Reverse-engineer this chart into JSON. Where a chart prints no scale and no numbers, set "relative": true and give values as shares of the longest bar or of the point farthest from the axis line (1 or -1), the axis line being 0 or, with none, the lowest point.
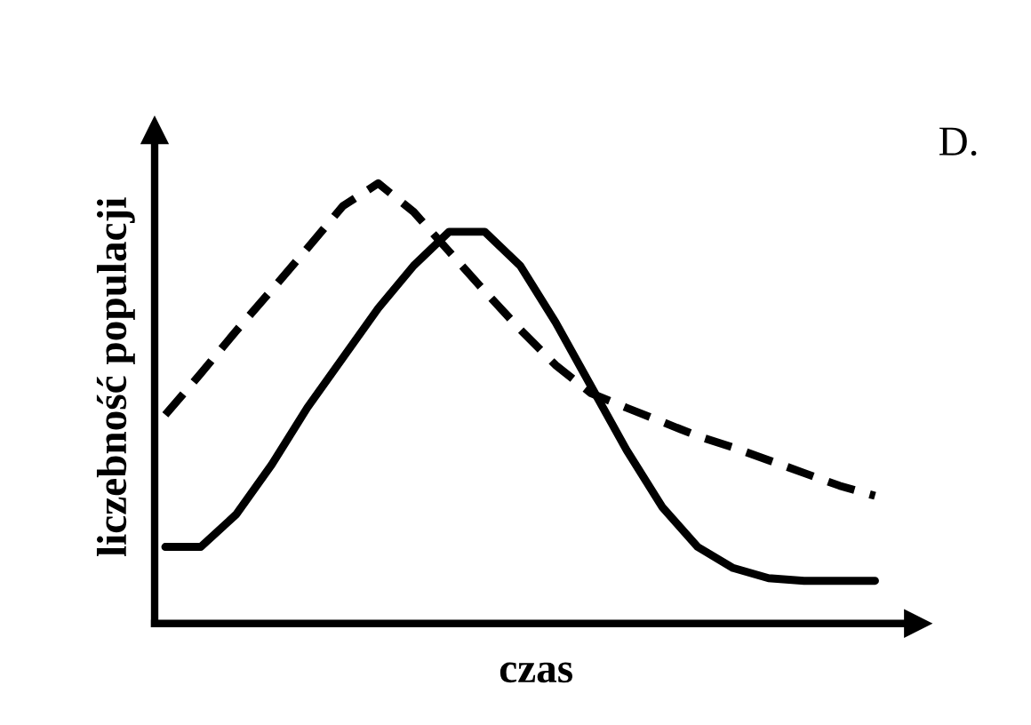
{
  "chart_data": {
    "type": "line",
    "relative": true,
    "xlabel": "czas",
    "ylabel": "liczebność populacji",
    "annotations": [
      "D."
    ],
    "tick_labels": false,
    "marker": "none",
    "categories": [
      null,
      null,
      null,
      null,
      null,
      null,
      null,
      null,
      null,
      null,
      null,
      null,
      null,
      null,
      null,
      null,
      null,
      null,
      null,
      null,
      null
    ],
    "series": [
      {
        "color": "#000000",
        "line_style": "dashed",
        "values": [
          0.474,
          0.568,
          0.665,
          0.758,
          0.852,
          0.948,
          1.0,
          0.935,
          0.845,
          0.755,
          0.668,
          0.587,
          0.523,
          0.49,
          0.458,
          0.426,
          0.4,
          0.371,
          0.342,
          0.313,
          0.29
        ]
      },
      {
        "color": "#000000",
        "line_style": "solid",
        "values": [
          0.174,
          0.174,
          0.248,
          0.361,
          0.49,
          0.603,
          0.716,
          0.813,
          0.89,
          0.89,
          0.813,
          0.684,
          0.539,
          0.394,
          0.265,
          0.174,
          0.126,
          0.103,
          0.097,
          0.097,
          0.097
        ]
      }
    ]
  }
}
